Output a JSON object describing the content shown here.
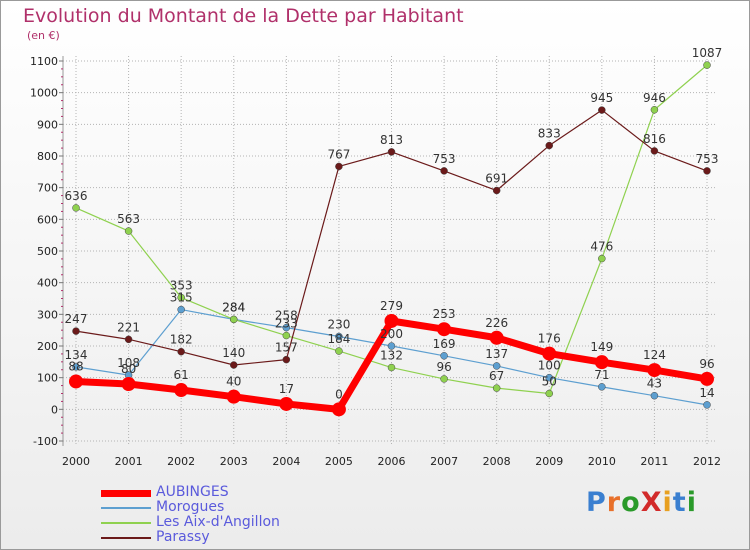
{
  "title": "Evolution du Montant de la Dette par Habitant",
  "subtitle": "(en €)",
  "logo_text": "ProXiti",
  "colors": {
    "title": "#b0306a",
    "grid": "#b4b4b4",
    "axis_text": "#222222",
    "legend_text": "#5a5adc"
  },
  "chart_data": {
    "type": "line",
    "x": [
      2000,
      2001,
      2002,
      2003,
      2004,
      2005,
      2006,
      2007,
      2008,
      2009,
      2010,
      2011,
      2012
    ],
    "ylim": [
      -100,
      1100
    ],
    "yticks": [
      -100,
      0,
      100,
      200,
      300,
      400,
      500,
      600,
      700,
      800,
      900,
      1000,
      1100
    ],
    "grid": true,
    "legend_position": "bottom-left",
    "series": [
      {
        "name": "AUBINGES",
        "color": "#ff0000",
        "width": 7,
        "marker": 7,
        "values": [
          88,
          80,
          61,
          40,
          17,
          0,
          279,
          253,
          226,
          176,
          149,
          124,
          96
        ]
      },
      {
        "name": "Morogues",
        "color": "#5d9fd0",
        "width": 1.2,
        "marker": 3.5,
        "values": [
          134,
          108,
          315,
          284,
          258,
          230,
          200,
          169,
          137,
          100,
          71,
          43,
          14
        ]
      },
      {
        "name": "Les Aix-d'Angillon",
        "color": "#8fd14f",
        "width": 1.2,
        "marker": 3.5,
        "values": [
          636,
          563,
          353,
          284,
          233,
          184,
          132,
          96,
          67,
          50,
          476,
          946,
          1087
        ]
      },
      {
        "name": "Parassy",
        "color": "#6b1a1a",
        "width": 1.2,
        "marker": 3.5,
        "values": [
          247,
          221,
          182,
          140,
          157,
          767,
          813,
          753,
          691,
          833,
          945,
          816,
          753
        ]
      }
    ]
  }
}
